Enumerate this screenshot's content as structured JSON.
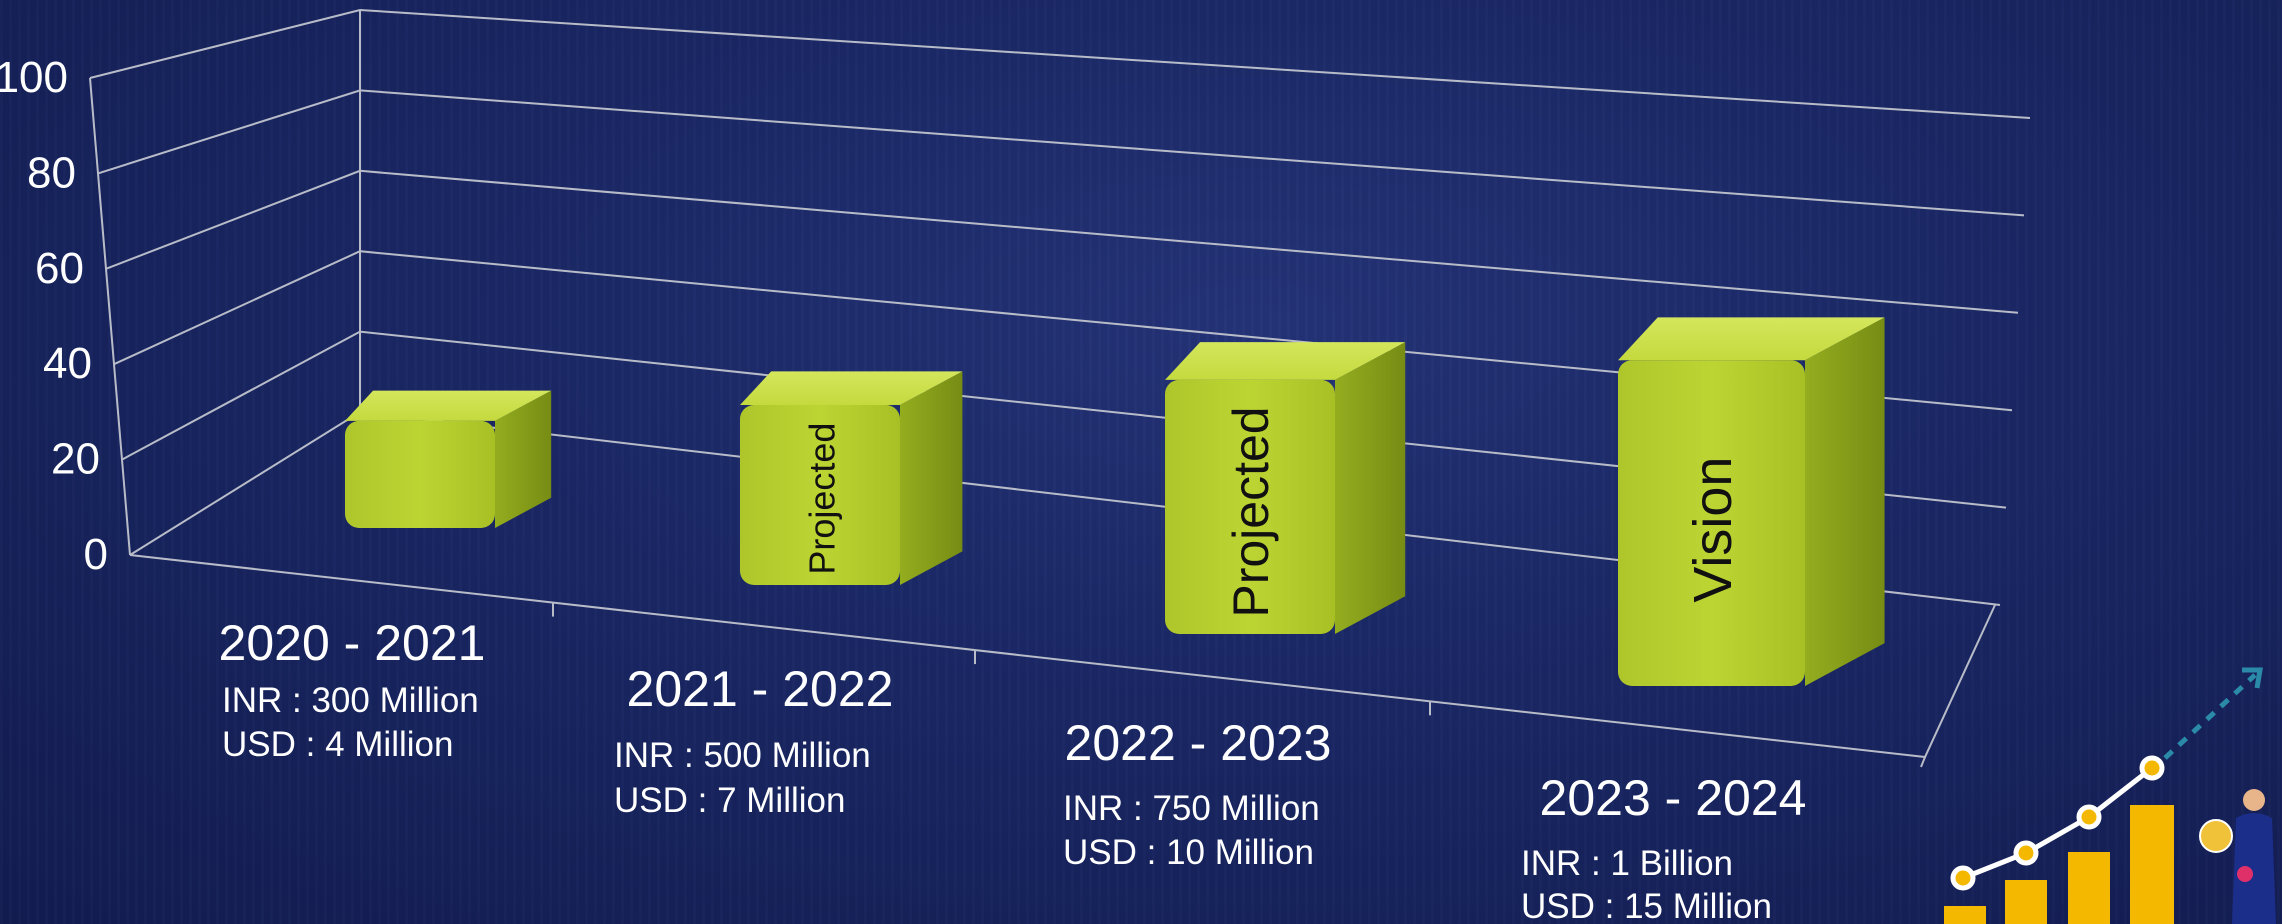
{
  "chart_data": {
    "type": "bar",
    "style": "3d-column",
    "categories": [
      "2020 - 2021",
      "2021 - 2022",
      "2022 - 2023",
      "2023 - 2024"
    ],
    "values": [
      30,
      50,
      70,
      90
    ],
    "bar_labels": [
      "",
      "Projected",
      "Projected",
      "Vision"
    ],
    "sub_labels": [
      [
        "INR : 300 Million",
        "USD : 4 Million"
      ],
      [
        "INR : 500 Million",
        "USD : 7 Million"
      ],
      [
        "INR : 750 Million",
        "USD : 10 Million"
      ],
      [
        "INR : 1 Billion",
        "USD : 15 Million"
      ]
    ],
    "ylim": [
      0,
      100
    ],
    "yticks": [
      0,
      20,
      40,
      60,
      80,
      100
    ],
    "grid": true,
    "bar_color": "#b5cf2c"
  },
  "colors": {
    "background": "#1a2866",
    "bar_front": "#b5cf2c",
    "bar_side": "#8aa11b",
    "bar_top": "#c9de47",
    "grid": "#b8bcc8",
    "text": "#ffffff",
    "icon_bar": "#f5b800",
    "icon_line": "#ffffff",
    "icon_arrow": "#2a8aa8"
  },
  "decoration": {
    "icon": "growth-chart-businessman-icon"
  }
}
